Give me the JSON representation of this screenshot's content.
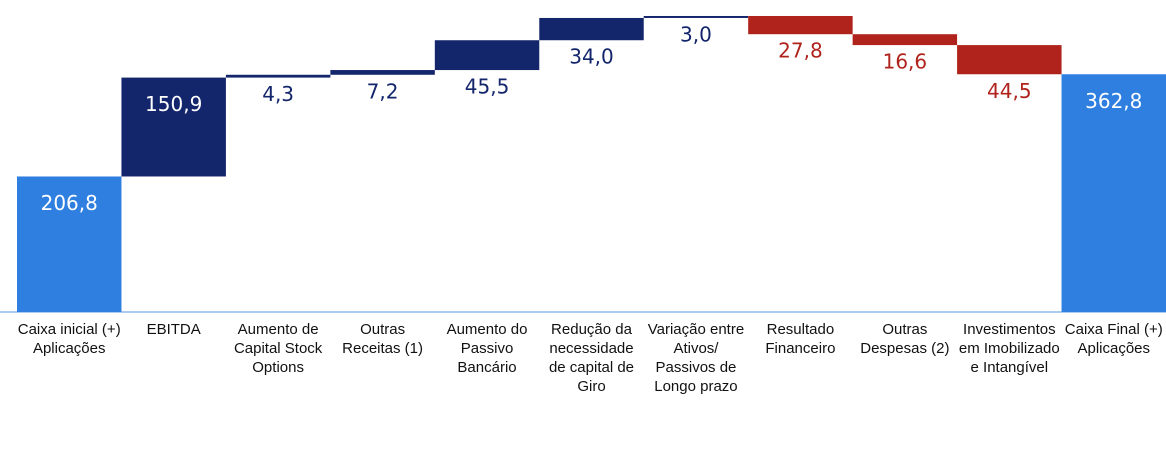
{
  "chart_data": {
    "type": "waterfall",
    "categories": [
      "Caixa inicial (+) Aplicações",
      "EBITDA",
      "Aumento de Capital Stock Options",
      "Outras Receitas (1)",
      "Aumento do Passivo Bancário",
      "Redução da necessidade de capital de Giro",
      "Variação entre Ativos/ Passivos de Longo prazo",
      "Resultado Financeiro",
      "Outras Despesas (2)",
      "Investimentos em Imobilizado e Intangível",
      "Caixa Final (+) Aplicações"
    ],
    "values": [
      206.8,
      150.9,
      4.3,
      7.2,
      45.5,
      34.0,
      3.0,
      -27.8,
      -16.6,
      -44.5,
      362.8
    ],
    "value_labels": [
      "206,8",
      "150,9",
      "4,3",
      "7,2",
      "45,5",
      "34,0",
      "3,0",
      "27,8",
      "16,6",
      "44,5",
      "362,8"
    ],
    "measure": [
      "absolute",
      "relative",
      "relative",
      "relative",
      "relative",
      "relative",
      "relative",
      "relative",
      "relative",
      "relative",
      "absolute"
    ],
    "total_color": "#2e7fe0",
    "increase_color": "#13256b",
    "decrease_color": "#b0231c",
    "ylim": [
      0,
      470
    ]
  }
}
